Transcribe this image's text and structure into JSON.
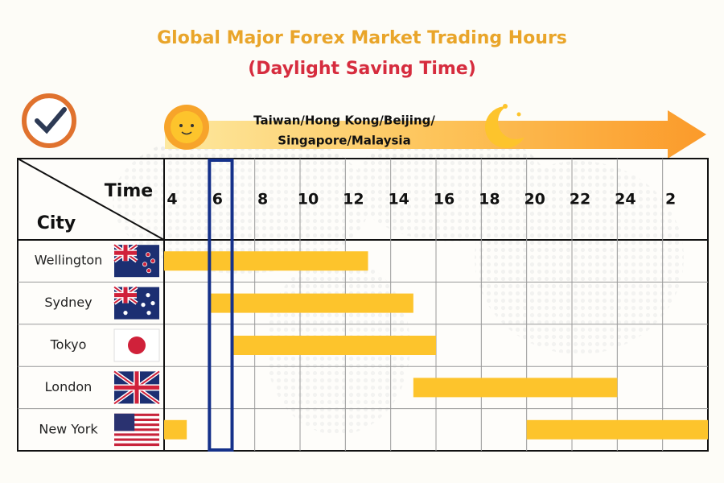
{
  "chart_data": {
    "type": "gantt",
    "title": "Global Major Forex Market Trading Hours",
    "subtitle": "(Daylight Saving Time)",
    "banner": [
      "Taiwan/Hong Kong/Beijing/",
      "Singapore/Malaysia"
    ],
    "x_label": "Time",
    "y_label": "City",
    "categories": [
      "Wellington",
      "Sydney",
      "Tokyo",
      "London",
      "New York"
    ],
    "segments": [
      [
        [
          4,
          13
        ]
      ],
      [
        [
          6,
          15
        ]
      ],
      [
        [
          7,
          16
        ]
      ],
      [
        [
          15,
          24
        ]
      ],
      [
        [
          20,
          28
        ],
        [
          4,
          5
        ]
      ]
    ],
    "color": "#fdc42c",
    "xlim": [
      4,
      28
    ],
    "xticks": [
      4,
      6,
      8,
      10,
      12,
      14,
      16,
      18,
      20,
      22,
      24,
      {
        "value": 26,
        "label": "2"
      }
    ],
    "highlight": [
      6,
      7
    ],
    "highlight_color": "#15318a",
    "grid": true
  }
}
